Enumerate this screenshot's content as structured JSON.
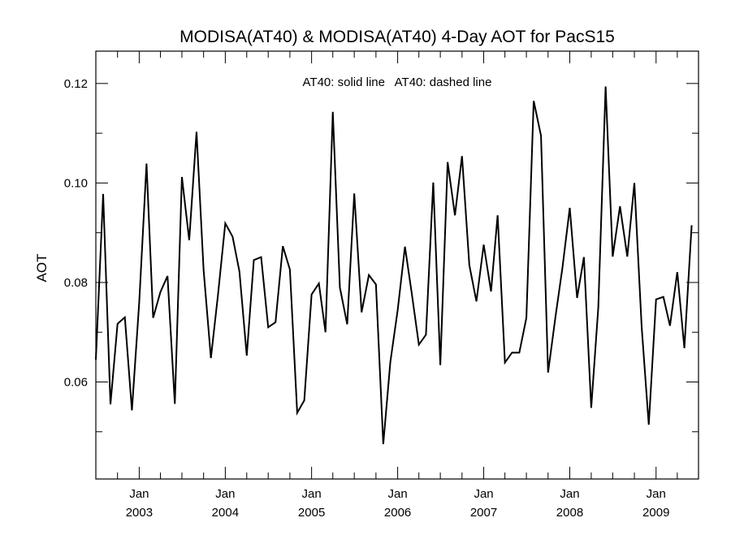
{
  "chart_data": {
    "type": "line",
    "title": "MODISA(AT40) & MODISA(AT40) 4-Day AOT for PacS15",
    "annotation": "AT40: solid line   AT40: dashed line",
    "xlabel": "",
    "ylabel": "AOT",
    "xlim": [
      "2002-07-01",
      "2009-06-30"
    ],
    "ylim": [
      0.0405,
      0.1265
    ],
    "y_ticks": [
      {
        "value": 0.06,
        "label": "0.06"
      },
      {
        "value": 0.08,
        "label": "0.08"
      },
      {
        "value": 0.1,
        "label": "0.10"
      },
      {
        "value": 0.12,
        "label": "0.12"
      }
    ],
    "x_ticks": [
      {
        "date": "2003-01-01",
        "month": "Jan",
        "year": "2003"
      },
      {
        "date": "2004-01-01",
        "month": "Jan",
        "year": "2004"
      },
      {
        "date": "2005-01-01",
        "month": "Jan",
        "year": "2005"
      },
      {
        "date": "2006-01-01",
        "month": "Jan",
        "year": "2006"
      },
      {
        "date": "2007-01-01",
        "month": "Jan",
        "year": "2007"
      },
      {
        "date": "2008-01-01",
        "month": "Jan",
        "year": "2008"
      },
      {
        "date": "2009-01-01",
        "month": "Jan",
        "year": "2009"
      }
    ],
    "grid": false,
    "series": [
      {
        "line_style": "solid",
        "color": "#000000",
        "x": [
          "2002-07-01",
          "2002-08-01",
          "2002-09-01",
          "2002-10-01",
          "2002-11-01",
          "2002-12-01",
          "2003-01-01",
          "2003-02-01",
          "2003-03-01",
          "2003-04-01",
          "2003-05-01",
          "2003-06-01",
          "2003-07-01",
          "2003-08-01",
          "2003-09-01",
          "2003-10-01",
          "2003-11-01",
          "2003-12-01",
          "2004-01-01",
          "2004-02-01",
          "2004-03-01",
          "2004-04-01",
          "2004-05-01",
          "2004-06-01",
          "2004-07-01",
          "2004-08-01",
          "2004-09-01",
          "2004-10-01",
          "2004-11-01",
          "2004-12-01",
          "2005-01-01",
          "2005-02-01",
          "2005-03-01",
          "2005-04-01",
          "2005-05-01",
          "2005-06-01",
          "2005-07-01",
          "2005-08-01",
          "2005-09-01",
          "2005-10-01",
          "2005-11-01",
          "2005-12-01",
          "2006-01-01",
          "2006-02-01",
          "2006-03-01",
          "2006-04-01",
          "2006-05-01",
          "2006-06-01",
          "2006-07-01",
          "2006-08-01",
          "2006-09-01",
          "2006-10-01",
          "2006-11-01",
          "2006-12-01",
          "2007-01-01",
          "2007-02-01",
          "2007-03-01",
          "2007-04-01",
          "2007-05-01",
          "2007-06-01",
          "2007-07-01",
          "2007-08-01",
          "2007-09-01",
          "2007-10-01",
          "2007-11-01",
          "2007-12-01",
          "2008-01-01",
          "2008-02-01",
          "2008-03-01",
          "2008-04-01",
          "2008-05-01",
          "2008-06-01",
          "2008-07-01",
          "2008-08-01",
          "2008-09-01",
          "2008-10-01",
          "2008-11-01",
          "2008-12-01",
          "2009-01-01",
          "2009-02-01",
          "2009-03-01",
          "2009-04-01",
          "2009-05-01",
          "2009-06-01"
        ],
        "values": [
          0.0645,
          0.0978,
          0.0555,
          0.0717,
          0.073,
          0.0543,
          0.076,
          0.1039,
          0.0729,
          0.0781,
          0.0813,
          0.0556,
          0.1012,
          0.0885,
          0.1103,
          0.0825,
          0.0648,
          0.0775,
          0.0919,
          0.0892,
          0.0822,
          0.0653,
          0.0845,
          0.0851,
          0.071,
          0.072,
          0.0873,
          0.0826,
          0.0538,
          0.0563,
          0.0776,
          0.0798,
          0.07,
          0.1143,
          0.079,
          0.0716,
          0.0979,
          0.074,
          0.0815,
          0.0796,
          0.0475,
          0.064,
          0.0744,
          0.0872,
          0.0781,
          0.0675,
          0.0695,
          0.1001,
          0.0634,
          0.1042,
          0.0935,
          0.1054,
          0.0835,
          0.0762,
          0.0876,
          0.0782,
          0.0935,
          0.0639,
          0.0659,
          0.0659,
          0.0729,
          0.1165,
          0.1095,
          0.0619,
          0.073,
          0.083,
          0.095,
          0.0769,
          0.0851,
          0.0548,
          0.075,
          0.1194,
          0.0852,
          0.0953,
          0.0852,
          0.1,
          0.071,
          0.0514,
          0.0766,
          0.0771,
          0.0713,
          0.0821,
          0.0668,
          0.0915
        ]
      }
    ]
  }
}
